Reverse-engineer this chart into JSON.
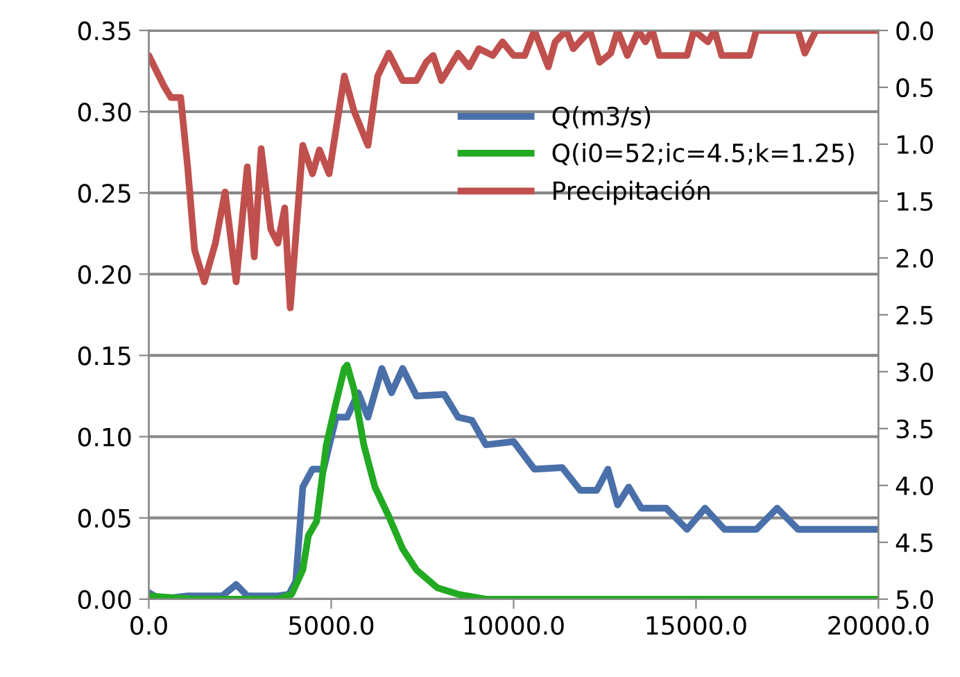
{
  "chart_data": {
    "type": "line",
    "legend": "right",
    "grid": "y",
    "marker": "none",
    "line_style": "solid",
    "xlim": [
      0,
      20000
    ],
    "xticks": [
      {
        "value": 0,
        "label": "0.0"
      },
      {
        "value": 5000,
        "label": "5000.0"
      },
      {
        "value": 10000,
        "label": "10000.0"
      },
      {
        "value": 15000,
        "label": "15000.0"
      },
      {
        "value": 20000,
        "label": "20000.0"
      }
    ],
    "ylim": [
      0,
      0.35
    ],
    "yticks": [
      {
        "value": 0,
        "label": "0.00"
      },
      {
        "value": 0.05,
        "label": "0.05"
      },
      {
        "value": 0.1,
        "label": "0.10"
      },
      {
        "value": 0.15,
        "label": "0.15"
      },
      {
        "value": 0.2,
        "label": "0.20"
      },
      {
        "value": 0.25,
        "label": "0.25"
      },
      {
        "value": 0.3,
        "label": "0.30"
      },
      {
        "value": 0.35,
        "label": "0.35"
      }
    ],
    "y2lim": [
      5,
      0
    ],
    "y2ticks": [
      {
        "value": 0,
        "label": "0.0"
      },
      {
        "value": 0.5,
        "label": "0.5"
      },
      {
        "value": 1,
        "label": "1.0"
      },
      {
        "value": 1.5,
        "label": "1.5"
      },
      {
        "value": 2,
        "label": "2.0"
      },
      {
        "value": 2.5,
        "label": "2.5"
      },
      {
        "value": 3,
        "label": "3.0"
      },
      {
        "value": 3.5,
        "label": "3.5"
      },
      {
        "value": 4,
        "label": "4.0"
      },
      {
        "value": 4.5,
        "label": "4.5"
      },
      {
        "value": 5,
        "label": "5.0"
      }
    ],
    "series": [
      {
        "name": "Q(m3/s)",
        "color": "#4a70aa",
        "x": [
          0,
          304,
          1065,
          2015,
          2395,
          2700,
          3536,
          3840,
          4030,
          4221,
          4487,
          4791,
          5133,
          5437,
          5741,
          6008,
          6388,
          6654,
          6958,
          7338,
          8099,
          8479,
          8859,
          9240,
          10000,
          10570,
          11331,
          11825,
          12281,
          12586,
          12852,
          13156,
          13498,
          14183,
          14753,
          15247,
          15779,
          16654,
          17224,
          17795,
          20000
        ],
        "values": [
          0.004,
          0,
          0.002,
          0.002,
          0.009,
          0.002,
          0.002,
          0.003,
          0.011,
          0.069,
          0.08,
          0.08,
          0.112,
          0.112,
          0.127,
          0.112,
          0.142,
          0.127,
          0.142,
          0.125,
          0.126,
          0.112,
          0.11,
          0.095,
          0.097,
          0.08,
          0.081,
          0.067,
          0.067,
          0.08,
          0.058,
          0.069,
          0.056,
          0.056,
          0.043,
          0.056,
          0.043,
          0.043,
          0.056,
          0.043,
          0.043
        ]
      },
      {
        "name": "Q(i0=52;ic=4.5;k=1.25)",
        "color": "#22aa22",
        "x": [
          0,
          1255,
          3536,
          3916,
          4221,
          4373,
          4601,
          4867,
          5133,
          5361,
          5437,
          5627,
          5894,
          6198,
          6578,
          6958,
          7338,
          7909,
          8479,
          9240,
          20000
        ],
        "values": [
          0.002,
          0,
          0,
          0.003,
          0.018,
          0.039,
          0.048,
          0.095,
          0.121,
          0.142,
          0.144,
          0.129,
          0.095,
          0.069,
          0.051,
          0.031,
          0.018,
          0.007,
          0.003,
          0,
          0
        ]
      },
      {
        "name": "Precipitación",
        "color": "#c0504d",
        "axis": "y2",
        "x": [
          0,
          418,
          608,
          875,
          1065,
          1255,
          1521,
          1825,
          2091,
          2395,
          2700,
          2890,
          3080,
          3346,
          3536,
          3726,
          3878,
          4221,
          4487,
          4677,
          4943,
          5361,
          5627,
          6008,
          6274,
          6578,
          6958,
          7338,
          7605,
          7795,
          8023,
          8479,
          8783,
          9049,
          9430,
          9696,
          10000,
          10304,
          10570,
          10951,
          11141,
          11445,
          11635,
          12091,
          12357,
          12662,
          12852,
          13118,
          13422,
          13612,
          13802,
          13992,
          14753,
          14943,
          15323,
          15513,
          15703,
          16464,
          16654,
          17224,
          17795,
          17985,
          18289,
          20000
        ],
        "values": [
          0.22,
          0.49,
          0.59,
          0.59,
          1.2,
          1.93,
          2.21,
          1.87,
          1.42,
          2.21,
          1.2,
          1.99,
          1.04,
          1.75,
          1.87,
          1.56,
          2.44,
          1.01,
          1.26,
          1.05,
          1.26,
          0.4,
          0.71,
          1.01,
          0.4,
          0.2,
          0.44,
          0.44,
          0.28,
          0.22,
          0.44,
          0.2,
          0.32,
          0.16,
          0.22,
          0.1,
          0.22,
          0.22,
          0,
          0.32,
          0.1,
          0,
          0.16,
          0,
          0.28,
          0.2,
          0,
          0.22,
          0,
          0.1,
          0,
          0.22,
          0.22,
          0,
          0.1,
          0,
          0.22,
          0.22,
          0,
          0,
          0,
          0.2,
          0,
          0
        ]
      }
    ]
  }
}
